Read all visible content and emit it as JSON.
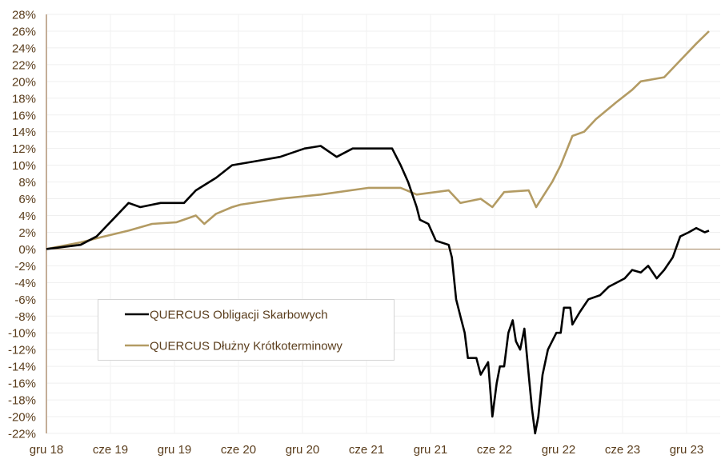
{
  "chart_data": {
    "type": "line",
    "title": "",
    "xlabel": "",
    "ylabel": "",
    "x_unit": "months since gru 18",
    "xlim": [
      0,
      63.1
    ],
    "ylim": [
      -22,
      28
    ],
    "y_ticks": [
      -22,
      -20,
      -18,
      -16,
      -14,
      -12,
      -10,
      -8,
      -6,
      -4,
      -2,
      0,
      2,
      4,
      6,
      8,
      10,
      12,
      14,
      16,
      18,
      20,
      22,
      24,
      26,
      28
    ],
    "y_tick_labels": [
      "-22%",
      "-20%",
      "-18%",
      "-16%",
      "-14%",
      "-12%",
      "-10%",
      "-8%",
      "-6%",
      "-4%",
      "-2%",
      "0%",
      "2%",
      "4%",
      "6%",
      "8%",
      "10%",
      "12%",
      "14%",
      "16%",
      "18%",
      "20%",
      "22%",
      "24%",
      "26%",
      "28%"
    ],
    "x_ticks": [
      0,
      6,
      12,
      18,
      24,
      30,
      36,
      42,
      48,
      54,
      60
    ],
    "x_tick_labels": [
      "gru 18",
      "cze 19",
      "gru 19",
      "cze 20",
      "gru 20",
      "cze 21",
      "gru 21",
      "cze 22",
      "gru 22",
      "cze 23",
      "gru 23"
    ],
    "grid": true,
    "legend_position": "lower-left inside",
    "series": [
      {
        "name": "QUERCUS Obligacji Skarbowych",
        "color": "#000000",
        "x": [
          0,
          3.2,
          4.7,
          6.2,
          7.7,
          8.8,
          10.7,
          12.9,
          14.0,
          15.9,
          17.4,
          19.7,
          21.9,
          24.2,
          25.7,
          27.2,
          28.7,
          30.9,
          32.4,
          33.2,
          33.9,
          34.7,
          35.0,
          35.8,
          36.5,
          37.7,
          38.0,
          38.4,
          38.8,
          39.2,
          39.5,
          40.3,
          40.7,
          41.4,
          41.8,
          42.2,
          42.5,
          42.9,
          43.3,
          43.7,
          44.0,
          44.4,
          44.8,
          45.2,
          45.5,
          45.8,
          46.1,
          46.5,
          47.0,
          47.8,
          48.2,
          48.5,
          49.1,
          49.3,
          50.0,
          50.8,
          51.9,
          52.7,
          54.2,
          54.9,
          55.7,
          56.4,
          57.2,
          57.9,
          58.7,
          59.4,
          60.2,
          60.9,
          61.7,
          62.1
        ],
        "y": [
          0,
          0.5,
          1.5,
          3.5,
          5.5,
          5,
          5.5,
          5.5,
          7,
          8.5,
          10,
          10.5,
          11,
          12,
          12.3,
          11,
          12,
          12,
          12,
          10,
          8,
          5,
          3.5,
          3,
          1,
          0.5,
          -1,
          -6,
          -8,
          -10,
          -13,
          -13,
          -15,
          -13.5,
          -20,
          -16,
          -14,
          -14,
          -10,
          -8.5,
          -11,
          -12,
          -9.5,
          -15,
          -19,
          -22,
          -20,
          -15,
          -12,
          -10,
          -10,
          -7,
          -7,
          -9,
          -7.5,
          -6,
          -5.5,
          -4.5,
          -3.5,
          -2.5,
          -2.8,
          -2,
          -3.5,
          -2.5,
          -1,
          1.5,
          2,
          2.5,
          2,
          2.2
        ]
      },
      {
        "name": "QUERCUS Dłużny Krótkoterminowy",
        "color": "#b39b63",
        "x": [
          0,
          3.2,
          5.4,
          7.7,
          9.9,
          12.2,
          14.0,
          14.8,
          15.9,
          17.4,
          18.2,
          21.9,
          25.7,
          30.2,
          33.2,
          34.7,
          37.7,
          38.8,
          40.7,
          41.8,
          42.9,
          45.2,
          45.9,
          47.4,
          48.2,
          49.3,
          50.4,
          51.5,
          53.4,
          54.9,
          55.7,
          57.9,
          59.4,
          60.9,
          62.1
        ],
        "y": [
          0,
          0.8,
          1.5,
          2.2,
          3,
          3.2,
          4,
          3,
          4.2,
          5,
          5.3,
          6,
          6.5,
          7.3,
          7.3,
          6.5,
          7,
          5.5,
          6,
          5,
          6.8,
          7,
          5,
          8,
          10,
          13.5,
          14,
          15.5,
          17.5,
          19,
          20,
          20.5,
          22.5,
          24.5,
          26
        ]
      }
    ]
  }
}
